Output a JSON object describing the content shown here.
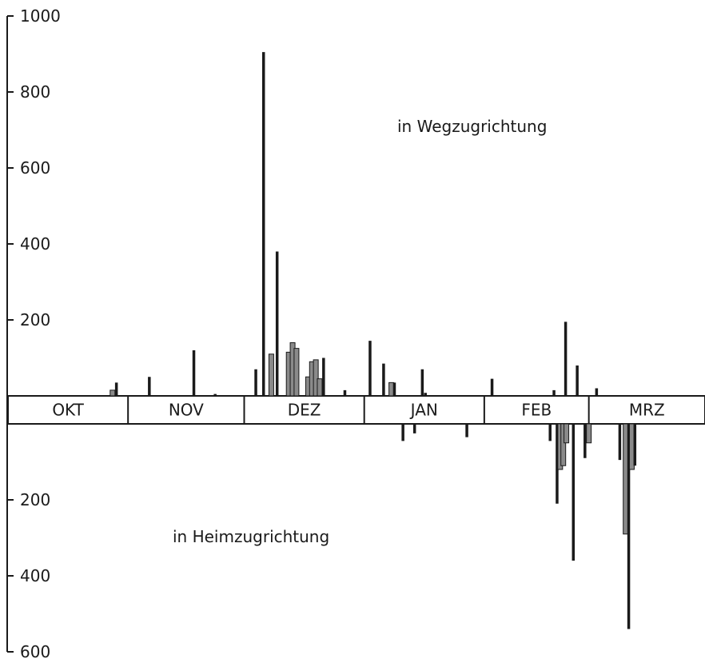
{
  "chart_data": {
    "type": "bar",
    "orientation": "vertical",
    "upper_axis": {
      "ticks": [
        1000,
        800,
        600,
        400,
        200
      ],
      "ylim": [
        0,
        1000
      ]
    },
    "lower_axis": {
      "ticks": [
        200,
        400,
        600
      ],
      "ylim": [
        0,
        600
      ]
    },
    "months": [
      "OKT",
      "NOV",
      "DEZ",
      "JAN",
      "FEB",
      "MRZ"
    ],
    "annotations": {
      "upper": "in Wegzugrichtung",
      "lower": "in Heimzugrichtung"
    },
    "series": [
      {
        "direction": "up",
        "bars": [
          {
            "day": 27.0,
            "value": 15,
            "style": "shaded"
          },
          {
            "day": 28.0,
            "value": 35,
            "style": "solid"
          },
          {
            "day": 36.5,
            "value": 50,
            "style": "solid"
          },
          {
            "day": 48.0,
            "value": 120,
            "style": "solid"
          },
          {
            "day": 53.5,
            "value": 5,
            "style": "solid"
          },
          {
            "day": 64.0,
            "value": 70,
            "style": "solid"
          },
          {
            "day": 66.0,
            "value": 905,
            "style": "solid"
          },
          {
            "day": 68.0,
            "value": 110,
            "style": "shaded"
          },
          {
            "day": 69.5,
            "value": 380,
            "style": "solid"
          },
          {
            "day": 72.5,
            "value": 115,
            "style": "shaded"
          },
          {
            "day": 73.5,
            "value": 140,
            "style": "shaded"
          },
          {
            "day": 74.5,
            "value": 125,
            "style": "shaded"
          },
          {
            "day": 77.5,
            "value": 50,
            "style": "shaded"
          },
          {
            "day": 78.5,
            "value": 90,
            "style": "shaded"
          },
          {
            "day": 79.5,
            "value": 95,
            "style": "shaded"
          },
          {
            "day": 80.5,
            "value": 45,
            "style": "shaded"
          },
          {
            "day": 81.5,
            "value": 100,
            "style": "solid"
          },
          {
            "day": 87.0,
            "value": 15,
            "style": "solid"
          },
          {
            "day": 93.5,
            "value": 145,
            "style": "solid"
          },
          {
            "day": 97.0,
            "value": 85,
            "style": "solid"
          },
          {
            "day": 99.0,
            "value": 35,
            "style": "shaded"
          },
          {
            "day": 99.8,
            "value": 35,
            "style": "solid"
          },
          {
            "day": 107.0,
            "value": 70,
            "style": "solid"
          },
          {
            "day": 107.8,
            "value": 8,
            "style": "solid"
          },
          {
            "day": 125.0,
            "value": 45,
            "style": "solid"
          },
          {
            "day": 141.0,
            "value": 15,
            "style": "solid"
          },
          {
            "day": 144.0,
            "value": 195,
            "style": "solid"
          },
          {
            "day": 147.0,
            "value": 80,
            "style": "solid"
          },
          {
            "day": 152.0,
            "value": 20,
            "style": "solid"
          }
        ]
      },
      {
        "direction": "down",
        "bars": [
          {
            "day": 102.0,
            "value": 45,
            "style": "solid"
          },
          {
            "day": 105.0,
            "value": 25,
            "style": "solid"
          },
          {
            "day": 118.5,
            "value": 35,
            "style": "solid"
          },
          {
            "day": 140.0,
            "value": 45,
            "style": "solid"
          },
          {
            "day": 141.8,
            "value": 210,
            "style": "solid"
          },
          {
            "day": 142.6,
            "value": 120,
            "style": "shaded"
          },
          {
            "day": 143.4,
            "value": 110,
            "style": "shaded"
          },
          {
            "day": 144.2,
            "value": 50,
            "style": "shaded"
          },
          {
            "day": 146.0,
            "value": 360,
            "style": "solid"
          },
          {
            "day": 149.0,
            "value": 90,
            "style": "solid"
          },
          {
            "day": 150.0,
            "value": 50,
            "style": "shaded"
          },
          {
            "day": 158.0,
            "value": 95,
            "style": "solid"
          },
          {
            "day": 159.5,
            "value": 290,
            "style": "shaded"
          },
          {
            "day": 160.3,
            "value": 540,
            "style": "solid"
          },
          {
            "day": 161.1,
            "value": 120,
            "style": "shaded"
          },
          {
            "day": 161.9,
            "value": 110,
            "style": "solid"
          }
        ]
      }
    ]
  }
}
